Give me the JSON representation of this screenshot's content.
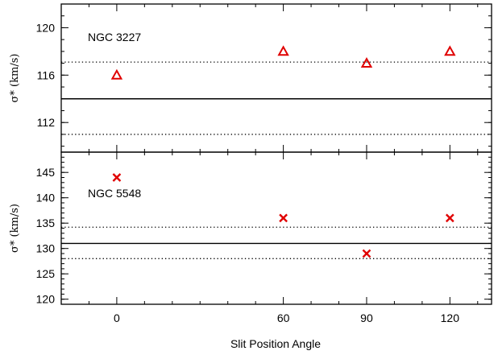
{
  "chart_data": [
    {
      "type": "scatter",
      "panel_label": "NGC 3227",
      "ylabel": "σ* (km/s)",
      "ylim": [
        109.5,
        122
      ],
      "yticks": [
        112,
        116,
        120
      ],
      "xlim": [
        -20,
        135
      ],
      "marker": "triangle",
      "marker_color": "#e00000",
      "points": [
        {
          "x": 0,
          "y": 116
        },
        {
          "x": 60,
          "y": 118
        },
        {
          "x": 90,
          "y": 117
        },
        {
          "x": 120,
          "y": 118
        }
      ],
      "hlines": [
        {
          "y": 117.1,
          "style": "dotted"
        },
        {
          "y": 114,
          "style": "solid"
        },
        {
          "y": 111,
          "style": "dotted"
        }
      ]
    },
    {
      "type": "scatter",
      "panel_label": "NGC 5548",
      "ylabel": "σ* (km/s)",
      "ylim": [
        119,
        149
      ],
      "yticks": [
        120,
        125,
        130,
        135,
        140,
        145
      ],
      "xlim": [
        -20,
        135
      ],
      "marker": "x",
      "marker_color": "#e00000",
      "points": [
        {
          "x": 0,
          "y": 144
        },
        {
          "x": 60,
          "y": 136
        },
        {
          "x": 90,
          "y": 129
        },
        {
          "x": 120,
          "y": 136
        }
      ],
      "hlines": [
        {
          "y": 134.2,
          "style": "dotted"
        },
        {
          "y": 131,
          "style": "solid"
        },
        {
          "y": 128,
          "style": "dotted"
        }
      ]
    }
  ],
  "xaxis": {
    "label": "Slit Position Angle",
    "ticks": [
      "0",
      "60",
      "90",
      "120"
    ],
    "tick_values": [
      0,
      60,
      90,
      120
    ]
  }
}
